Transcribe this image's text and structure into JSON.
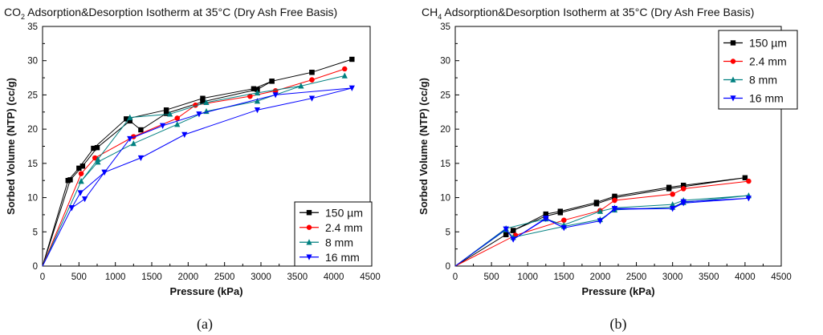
{
  "chart_data": [
    {
      "type": "line",
      "title_main": "CO",
      "title_sub": "2",
      "title_rest": " Adsorption&Desorption Isotherm at 35°C (Dry Ash Free Basis)",
      "xlabel": "Pressure (kPa)",
      "ylabel": "Sorbed Volume (NTP) (cc/g)",
      "xlim": [
        0,
        4500
      ],
      "ylim": [
        0,
        35
      ],
      "xticks": [
        "0",
        "500",
        "1000",
        "1500",
        "2000",
        "2500",
        "3000",
        "3500",
        "4000",
        "4500"
      ],
      "yticks": [
        "0",
        "5",
        "10",
        "15",
        "20",
        "25",
        "30",
        "35"
      ],
      "legend_position": "bottom-right",
      "caption": "(a)",
      "grid": false,
      "series": [
        {
          "name": "150 µm",
          "color": "#000000",
          "marker": "square",
          "points": [
            [
              0,
              0
            ],
            [
              350,
              12.5
            ],
            [
              500,
              14.3
            ],
            [
              700,
              17.2
            ],
            [
              1150,
              21.5
            ],
            [
              1700,
              22.8
            ],
            [
              2200,
              24.5
            ],
            [
              2900,
              25.9
            ],
            [
              3150,
              27.0
            ],
            [
              3700,
              28.3
            ],
            [
              4250,
              30.2
            ],
            [
              3700,
              28.3
            ],
            [
              3150,
              27.0
            ],
            [
              2950,
              25.8
            ],
            [
              2200,
              24.0
            ],
            [
              1700,
              22.3
            ],
            [
              1350,
              19.9
            ],
            [
              1200,
              21.2
            ],
            [
              750,
              17.3
            ],
            [
              550,
              14.6
            ],
            [
              380,
              12.6
            ],
            [
              0,
              0
            ]
          ]
        },
        {
          "name": "2.4 mm",
          "color": "#ff0000",
          "marker": "circle",
          "points": [
            [
              0,
              0
            ],
            [
              530,
              13.5
            ],
            [
              720,
              15.8
            ],
            [
              1250,
              18.9
            ],
            [
              1850,
              21.6
            ],
            [
              2100,
              23.5
            ],
            [
              2850,
              24.8
            ],
            [
              3200,
              25.6
            ],
            [
              3700,
              27.2
            ],
            [
              4150,
              28.8
            ],
            [
              3700,
              27.2
            ],
            [
              3200,
              25.6
            ],
            [
              2850,
              24.8
            ],
            [
              2100,
              23.5
            ],
            [
              1850,
              21.6
            ],
            [
              1250,
              18.9
            ],
            [
              720,
              15.8
            ],
            [
              530,
              13.5
            ],
            [
              0,
              0
            ]
          ]
        },
        {
          "name": "8 mm",
          "color": "#008080",
          "marker": "triangle-up",
          "points": [
            [
              0,
              0
            ],
            [
              530,
              12.4
            ],
            [
              760,
              15.6
            ],
            [
              1200,
              21.7
            ],
            [
              1750,
              22.2
            ],
            [
              2250,
              23.9
            ],
            [
              2950,
              25.3
            ],
            [
              3550,
              26.3
            ],
            [
              4150,
              27.8
            ],
            [
              3550,
              26.3
            ],
            [
              2950,
              24.1
            ],
            [
              2250,
              22.6
            ],
            [
              1850,
              20.7
            ],
            [
              1250,
              17.9
            ],
            [
              760,
              15.2
            ],
            [
              530,
              12.4
            ],
            [
              0,
              0
            ]
          ]
        },
        {
          "name": "16 mm",
          "color": "#0000ff",
          "marker": "triangle-down",
          "points": [
            [
              0,
              0
            ],
            [
              400,
              8.5
            ],
            [
              580,
              9.8
            ],
            [
              850,
              13.7
            ],
            [
              1350,
              15.8
            ],
            [
              1950,
              19.2
            ],
            [
              2950,
              22.8
            ],
            [
              3700,
              24.5
            ],
            [
              4250,
              26.0
            ],
            [
              3200,
              25.0
            ],
            [
              2150,
              22.2
            ],
            [
              1650,
              20.5
            ],
            [
              1200,
              18.6
            ],
            [
              850,
              13.7
            ],
            [
              520,
              10.7
            ],
            [
              400,
              8.5
            ],
            [
              0,
              0
            ]
          ]
        }
      ]
    },
    {
      "type": "line",
      "title_main": "CH",
      "title_sub": "4",
      "title_rest": " Adsorption&Desorption Isotherm at 35°C (Dry Ash Free Basis)",
      "xlabel": "Pressure (kPa)",
      "ylabel": "Sorbed Volume (NTP) (cc/g)",
      "xlim": [
        0,
        4500
      ],
      "ylim": [
        0,
        35
      ],
      "xticks": [
        "0",
        "500",
        "1000",
        "1500",
        "2000",
        "2500",
        "3000",
        "3500",
        "4000",
        "4500"
      ],
      "yticks": [
        "0",
        "5",
        "10",
        "15",
        "20",
        "25",
        "30",
        "35"
      ],
      "legend_position": "top-right",
      "caption": "(b)",
      "grid": false,
      "series": [
        {
          "name": "150 µm",
          "color": "#000000",
          "marker": "square",
          "points": [
            [
              0,
              0
            ],
            [
              700,
              4.6
            ],
            [
              800,
              5.2
            ],
            [
              1250,
              7.6
            ],
            [
              1450,
              8.0
            ],
            [
              1950,
              9.3
            ],
            [
              2200,
              10.2
            ],
            [
              2950,
              11.5
            ],
            [
              3150,
              11.8
            ],
            [
              4000,
              12.9
            ],
            [
              3150,
              11.6
            ],
            [
              2950,
              11.3
            ],
            [
              2200,
              10.0
            ],
            [
              1950,
              9.1
            ],
            [
              1450,
              7.8
            ],
            [
              1250,
              7.3
            ],
            [
              800,
              5.2
            ],
            [
              700,
              4.6
            ],
            [
              0,
              0
            ]
          ]
        },
        {
          "name": "2.4 mm",
          "color": "#ff0000",
          "marker": "circle",
          "points": [
            [
              0,
              0
            ],
            [
              830,
              4.5
            ],
            [
              1500,
              6.7
            ],
            [
              2000,
              8.1
            ],
            [
              2200,
              9.6
            ],
            [
              3000,
              10.5
            ],
            [
              3150,
              11.3
            ],
            [
              4050,
              12.4
            ],
            [
              3150,
              11.3
            ],
            [
              3000,
              10.5
            ],
            [
              2200,
              9.6
            ],
            [
              2000,
              8.1
            ],
            [
              1500,
              6.7
            ],
            [
              830,
              4.5
            ],
            [
              0,
              0
            ]
          ]
        },
        {
          "name": "8 mm",
          "color": "#008080",
          "marker": "triangle-up",
          "points": [
            [
              0,
              0
            ],
            [
              700,
              5.5
            ],
            [
              1250,
              6.9
            ],
            [
              1500,
              6.0
            ],
            [
              2000,
              8.0
            ],
            [
              2200,
              8.5
            ],
            [
              3000,
              9.0
            ],
            [
              3150,
              9.6
            ],
            [
              4050,
              10.3
            ],
            [
              3150,
              9.3
            ],
            [
              3000,
              8.6
            ],
            [
              2200,
              8.2
            ],
            [
              2000,
              6.8
            ],
            [
              1500,
              5.8
            ],
            [
              800,
              4.2
            ],
            [
              700,
              5.3
            ],
            [
              0,
              0
            ]
          ]
        },
        {
          "name": "16 mm",
          "color": "#0000ff",
          "marker": "triangle-down",
          "points": [
            [
              0,
              0
            ],
            [
              700,
              5.4
            ],
            [
              800,
              3.9
            ],
            [
              1250,
              7.0
            ],
            [
              1500,
              5.6
            ],
            [
              2000,
              6.6
            ],
            [
              2200,
              8.4
            ],
            [
              3000,
              8.4
            ],
            [
              3150,
              9.4
            ],
            [
              4050,
              9.9
            ],
            [
              3150,
              9.2
            ],
            [
              3000,
              8.4
            ],
            [
              2200,
              8.3
            ],
            [
              2000,
              6.6
            ],
            [
              1500,
              5.6
            ],
            [
              1250,
              6.9
            ],
            [
              800,
              3.9
            ],
            [
              700,
              5.4
            ],
            [
              0,
              0
            ]
          ]
        }
      ]
    }
  ]
}
